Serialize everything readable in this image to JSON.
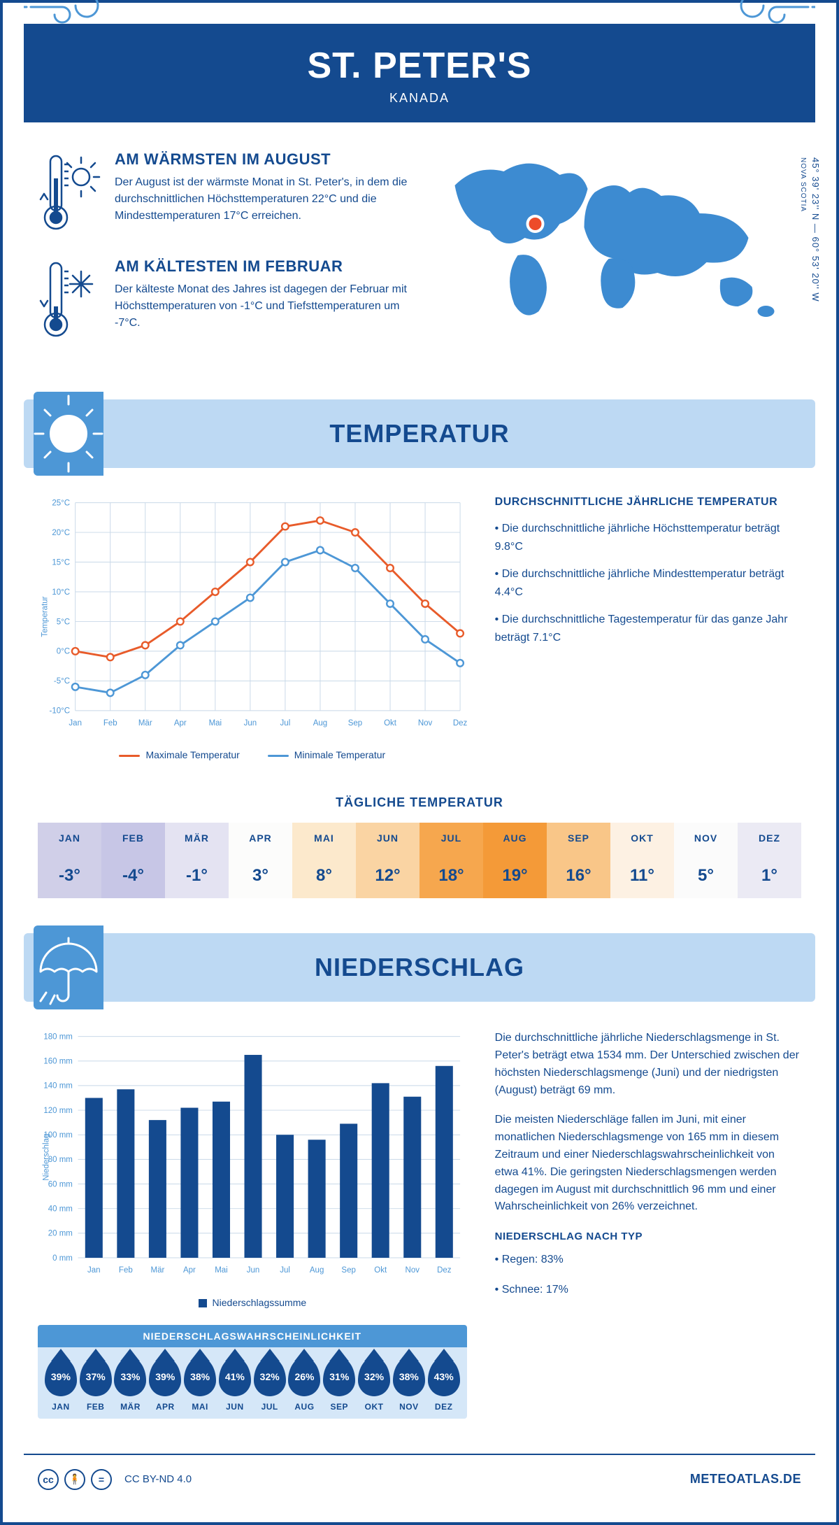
{
  "header": {
    "title": "ST. PETER'S",
    "subtitle": "KANADA"
  },
  "coords": "45° 39' 23'' N — 60° 53' 20'' W",
  "region": "NOVA SCOTIA",
  "intro": {
    "warm": {
      "title": "AM WÄRMSTEN IM AUGUST",
      "text": "Der August ist der wärmste Monat in St. Peter's, in dem die durchschnittlichen Höchsttemperaturen 22°C und die Mindesttemperaturen 17°C erreichen."
    },
    "cold": {
      "title": "AM KÄLTESTEN IM FEBRUAR",
      "text": "Der kälteste Monat des Jahres ist dagegen der Februar mit Höchsttemperaturen von -1°C und Tiefsttemperaturen um -7°C."
    }
  },
  "sections": {
    "temperature": "TEMPERATUR",
    "precipitation": "NIEDERSCHLAG"
  },
  "months": [
    "Jan",
    "Feb",
    "Mär",
    "Apr",
    "Mai",
    "Jun",
    "Jul",
    "Aug",
    "Sep",
    "Okt",
    "Nov",
    "Dez"
  ],
  "months_upper": [
    "JAN",
    "FEB",
    "MÄR",
    "APR",
    "MAI",
    "JUN",
    "JUL",
    "AUG",
    "SEP",
    "OKT",
    "NOV",
    "DEZ"
  ],
  "temp_chart": {
    "type": "line",
    "ylabel": "Temperatur",
    "ylim": [
      -10,
      25
    ],
    "ystep": 5,
    "max_series": {
      "label": "Maximale Temperatur",
      "color": "#e85b2a",
      "values": [
        0,
        -1,
        1,
        5,
        10,
        15,
        21,
        22,
        20,
        14,
        8,
        3
      ]
    },
    "min_series": {
      "label": "Minimale Temperatur",
      "color": "#4d97d6",
      "values": [
        -6,
        -7,
        -4,
        1,
        5,
        9,
        15,
        17,
        14,
        8,
        2,
        -2
      ]
    },
    "background": "#ffffff",
    "grid_color": "#c8d8e8",
    "marker": "circle",
    "line_width": 3,
    "marker_size": 5
  },
  "temp_info": {
    "heading": "DURCHSCHNITTLICHE JÄHRLICHE TEMPERATUR",
    "b1": "• Die durchschnittliche jährliche Höchsttemperatur beträgt 9.8°C",
    "b2": "• Die durchschnittliche jährliche Mindesttemperatur beträgt 4.4°C",
    "b3": "• Die durchschnittliche Tagestemperatur für das ganze Jahr beträgt 7.1°C"
  },
  "daily": {
    "title": "TÄGLICHE TEMPERATUR",
    "values": [
      "-3°",
      "-4°",
      "-1°",
      "3°",
      "8°",
      "12°",
      "18°",
      "19°",
      "16°",
      "11°",
      "5°",
      "1°"
    ],
    "colors": [
      "#d0cfe8",
      "#c7c6e6",
      "#e4e3f2",
      "#fcfcfb",
      "#fce9cc",
      "#fad4a3",
      "#f6a74e",
      "#f49a38",
      "#f9c688",
      "#fdf1e3",
      "#fbfbfb",
      "#ebeaf4"
    ]
  },
  "precip_chart": {
    "type": "bar",
    "ylabel": "Niederschlag",
    "ylim": [
      0,
      180
    ],
    "ystep": 20,
    "values": [
      130,
      137,
      112,
      122,
      127,
      165,
      100,
      96,
      109,
      142,
      131,
      156
    ],
    "bar_color": "#144a8f",
    "grid_color": "#c8d8e8",
    "legend": "Niederschlagssumme"
  },
  "precip_text": {
    "p1": "Die durchschnittliche jährliche Niederschlagsmenge in St. Peter's beträgt etwa 1534 mm. Der Unterschied zwischen der höchsten Niederschlagsmenge (Juni) und der niedrigsten (August) beträgt 69 mm.",
    "p2": "Die meisten Niederschläge fallen im Juni, mit einer monatlichen Niederschlagsmenge von 165 mm in diesem Zeitraum und einer Niederschlagswahrscheinlichkeit von etwa 41%. Die geringsten Niederschlagsmengen werden dagegen im August mit durchschnittlich 96 mm und einer Wahrscheinlichkeit von 26% verzeichnet.",
    "type_heading": "NIEDERSCHLAG NACH TYP",
    "rain": "• Regen: 83%",
    "snow": "• Schnee: 17%"
  },
  "prob": {
    "title": "NIEDERSCHLAGSWAHRSCHEINLICHKEIT",
    "values": [
      "39%",
      "37%",
      "33%",
      "39%",
      "38%",
      "41%",
      "32%",
      "26%",
      "31%",
      "32%",
      "38%",
      "43%"
    ]
  },
  "footer": {
    "license": "CC BY-ND 4.0",
    "site": "METEOATLAS.DE"
  },
  "palette": {
    "primary": "#144a8f",
    "accent": "#4d97d6",
    "light": "#bdd9f3",
    "lighter": "#d5e7f8"
  }
}
